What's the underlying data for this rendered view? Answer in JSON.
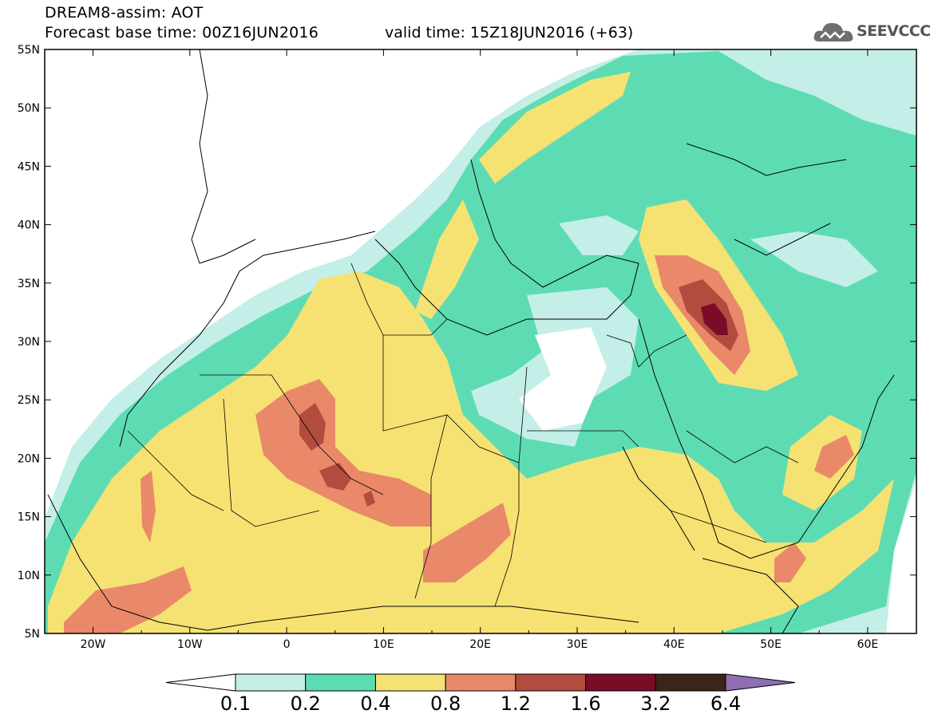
{
  "header": {
    "title_line1": "DREAM8-assim: AOT",
    "title_line2": "Forecast base time: 00Z16JUN2016",
    "valid_time": "valid time: 15Z18JUN2016 (+63)",
    "logo_text": "SEEVCCC"
  },
  "axes": {
    "lat_labels": [
      "55N",
      "50N",
      "45N",
      "40N",
      "35N",
      "30N",
      "25N",
      "20N",
      "15N",
      "10N",
      "5N"
    ],
    "lon_labels": [
      "20W",
      "10W",
      "0",
      "10E",
      "20E",
      "30E",
      "40E",
      "50E",
      "60E"
    ]
  },
  "colorbar": {
    "levels": [
      "0.1",
      "0.2",
      "0.4",
      "0.8",
      "1.2",
      "1.6",
      "3.2",
      "6.4"
    ],
    "colors": [
      "#ffffff",
      "#c4eee8",
      "#5ddcb4",
      "#f5e272",
      "#e9896a",
      "#b24c3e",
      "#7c0b28",
      "#3c2418",
      "#8e6fb0"
    ]
  }
}
